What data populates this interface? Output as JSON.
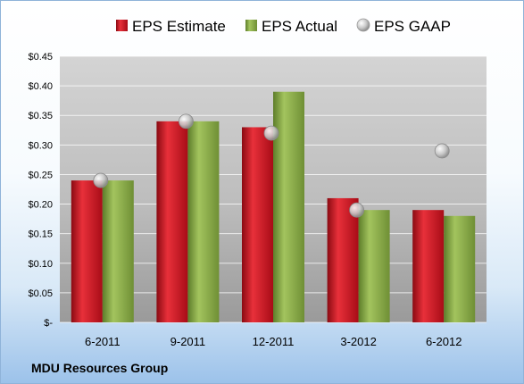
{
  "chart_data": {
    "type": "bar",
    "categories": [
      "6-2011",
      "9-2011",
      "12-2011",
      "3-2012",
      "6-2012"
    ],
    "series": [
      {
        "name": "EPS Estimate",
        "type": "bar",
        "color": "#c8101e",
        "values": [
          0.24,
          0.34,
          0.33,
          0.21,
          0.19
        ]
      },
      {
        "name": "EPS Actual",
        "type": "bar",
        "color": "#84a844",
        "values": [
          0.24,
          0.34,
          0.39,
          0.19,
          0.18
        ]
      },
      {
        "name": "EPS GAAP",
        "type": "scatter",
        "color": "#b0b0b0",
        "values": [
          0.24,
          0.34,
          0.32,
          0.19,
          0.29
        ]
      }
    ],
    "ylim": [
      0,
      0.45
    ],
    "yticks": [
      0,
      0.05,
      0.1,
      0.15,
      0.2,
      0.25,
      0.3,
      0.35,
      0.4,
      0.45
    ],
    "ytick_labels": [
      "$-",
      "$0.05",
      "$0.10",
      "$0.15",
      "$0.20",
      "$0.25",
      "$0.30",
      "$0.35",
      "$0.40",
      "$0.45"
    ],
    "grid": true,
    "legend_position": "top",
    "xlabel": "",
    "ylabel": ""
  },
  "company_label": "MDU Resources Group"
}
